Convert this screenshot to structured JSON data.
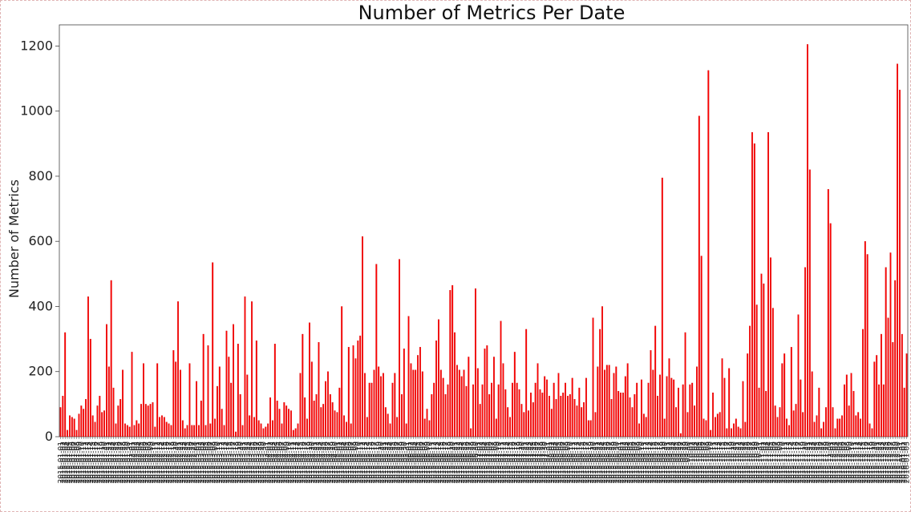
{
  "chart_data": {
    "type": "bar",
    "title": "Number of Metrics Per Date",
    "xlabel": "",
    "ylabel": "Number of Metrics",
    "ylim": [
      0,
      1265
    ],
    "yticks": [
      0,
      200,
      400,
      600,
      800,
      1000,
      1200
    ],
    "grid": false,
    "legend": "none",
    "bar_color": "#ff0000",
    "bar_edge_color": "#cc0000",
    "category_label_prefix": "2015-0",
    "values": [
      90,
      125,
      320,
      20,
      65,
      60,
      55,
      20,
      70,
      95,
      85,
      115,
      430,
      300,
      65,
      45,
      95,
      125,
      75,
      80,
      345,
      215,
      480,
      150,
      40,
      95,
      115,
      205,
      40,
      35,
      30,
      260,
      35,
      50,
      40,
      100,
      225,
      100,
      95,
      100,
      105,
      30,
      225,
      60,
      65,
      60,
      45,
      40,
      35,
      265,
      230,
      415,
      205,
      50,
      25,
      35,
      225,
      35,
      35,
      170,
      35,
      110,
      315,
      35,
      280,
      40,
      535,
      55,
      155,
      215,
      85,
      35,
      325,
      245,
      165,
      345,
      15,
      285,
      130,
      35,
      430,
      190,
      65,
      415,
      60,
      295,
      50,
      40,
      25,
      30,
      40,
      120,
      50,
      285,
      110,
      85,
      40,
      105,
      95,
      85,
      80,
      20,
      25,
      40,
      195,
      315,
      120,
      55,
      350,
      230,
      110,
      130,
      290,
      90,
      100,
      170,
      200,
      130,
      105,
      80,
      75,
      150,
      400,
      65,
      45,
      275,
      40,
      280,
      240,
      295,
      310,
      615,
      195,
      60,
      165,
      165,
      205,
      530,
      215,
      185,
      195,
      90,
      70,
      40,
      165,
      195,
      60,
      545,
      130,
      270,
      40,
      370,
      225,
      205,
      205,
      250,
      275,
      200,
      55,
      85,
      50,
      130,
      165,
      295,
      360,
      205,
      180,
      130,
      160,
      450,
      465,
      320,
      220,
      205,
      185,
      205,
      155,
      245,
      25,
      160,
      455,
      210,
      100,
      160,
      270,
      280,
      130,
      165,
      245,
      55,
      160,
      355,
      225,
      145,
      90,
      60,
      165,
      260,
      165,
      145,
      100,
      75,
      330,
      80,
      135,
      105,
      165,
      225,
      145,
      135,
      185,
      175,
      125,
      85,
      165,
      115,
      195,
      125,
      135,
      165,
      125,
      130,
      180,
      115,
      95,
      150,
      90,
      105,
      180,
      50,
      50,
      365,
      75,
      215,
      330,
      400,
      205,
      220,
      220,
      115,
      195,
      215,
      140,
      135,
      135,
      185,
      225,
      120,
      90,
      130,
      165,
      40,
      175,
      70,
      60,
      165,
      265,
      205,
      340,
      125,
      190,
      795,
      55,
      185,
      240,
      180,
      175,
      90,
      150,
      10,
      160,
      320,
      75,
      160,
      165,
      95,
      215,
      985,
      555,
      55,
      50,
      1125,
      20,
      135,
      60,
      70,
      75,
      240,
      180,
      25,
      210,
      25,
      40,
      55,
      30,
      25,
      170,
      45,
      255,
      340,
      935,
      900,
      405,
      150,
      500,
      470,
      140,
      935,
      550,
      395,
      95,
      60,
      90,
      225,
      255,
      55,
      35,
      275,
      80,
      100,
      375,
      175,
      75,
      520,
      1205,
      820,
      200,
      45,
      65,
      150,
      25,
      45,
      90,
      760,
      655,
      90,
      25,
      55,
      55,
      65,
      160,
      190,
      95,
      195,
      140,
      65,
      75,
      55,
      330,
      600,
      560,
      40,
      25,
      230,
      250,
      160,
      315,
      160,
      520,
      365,
      565,
      290,
      480,
      1145,
      1065,
      315,
      150,
      255
    ]
  }
}
